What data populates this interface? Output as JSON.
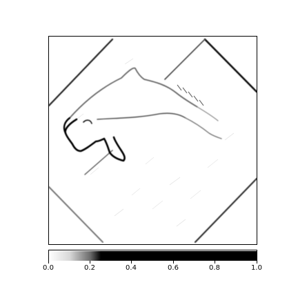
{
  "colorbar": {
    "ticks": [
      "0.0",
      "0.2",
      "0.4",
      "0.6",
      "0.8",
      "1.0"
    ],
    "colormap": [
      "#ffffff",
      "#d8d8d8",
      "#6a6a6a",
      "#000000",
      "#000000",
      "#000000"
    ]
  },
  "image": {
    "subject": "edge-filtered dolphin on rotated square",
    "colors": {
      "background": "#ffffff",
      "edge": "#000000",
      "mid": "#8a8a8a"
    }
  }
}
